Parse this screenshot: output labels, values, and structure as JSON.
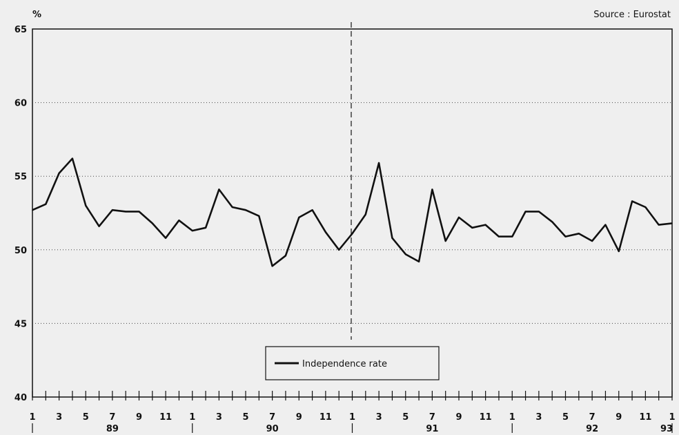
{
  "source": "Source : Eurostat",
  "chart_data": {
    "type": "line",
    "title": "",
    "ylabel": "%",
    "xlabel": "",
    "ylim": [
      40,
      65
    ],
    "yticks": [
      40,
      45,
      50,
      55,
      60,
      65
    ],
    "x_month_labels": [
      "1",
      "3",
      "5",
      "7",
      "9",
      "11",
      "1",
      "3",
      "5",
      "7",
      "9",
      "11",
      "1",
      "3",
      "5",
      "7",
      "9",
      "11",
      "1",
      "3",
      "5",
      "7",
      "9",
      "11",
      "1"
    ],
    "year_labels": [
      "89",
      "90",
      "91",
      "92",
      "93"
    ],
    "grid": true,
    "legend_position": "bottom-center",
    "series": [
      {
        "name": "Independence rate",
        "color": "#111111",
        "values": [
          52.7,
          53.1,
          55.2,
          56.2,
          53.0,
          51.6,
          52.7,
          52.6,
          52.6,
          51.8,
          50.8,
          52.0,
          51.3,
          51.5,
          54.1,
          52.9,
          52.7,
          52.3,
          48.9,
          49.6,
          52.2,
          52.7,
          51.2,
          50.0,
          51.1,
          52.4,
          55.9,
          50.8,
          49.7,
          49.2,
          54.1,
          50.6,
          52.2,
          51.5,
          51.7,
          50.9,
          50.9,
          52.6,
          52.6,
          51.9,
          50.9,
          51.1,
          50.6,
          51.7,
          49.9,
          53.3,
          52.9,
          51.7,
          51.8
        ]
      }
    ]
  }
}
